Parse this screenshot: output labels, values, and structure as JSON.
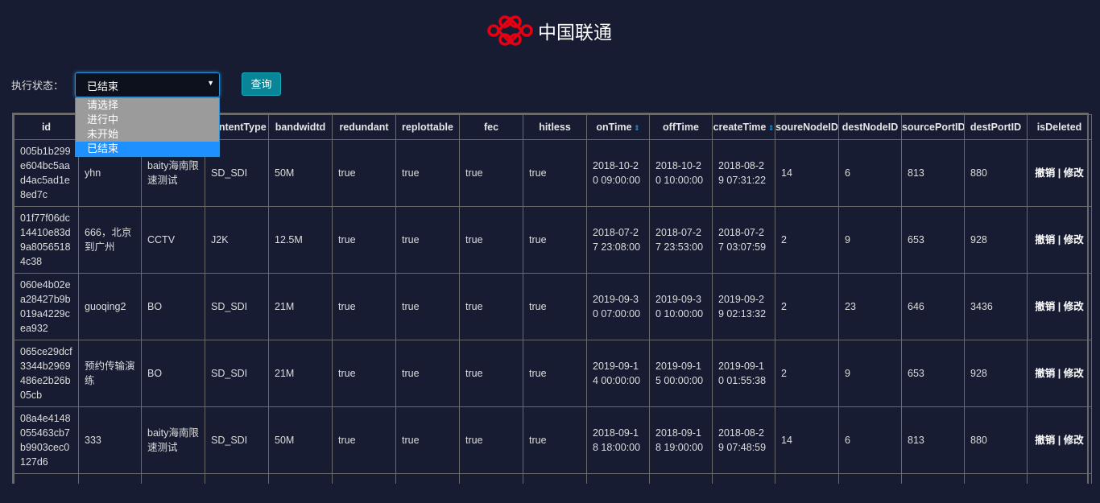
{
  "header": {
    "logo_text": "中国联通",
    "brand_color": "#e60012"
  },
  "filter": {
    "label": "执行状态：",
    "selected": "已结束",
    "options": [
      "请选择",
      "进行中",
      "未开始",
      "已结束"
    ],
    "query_label": "查询"
  },
  "table": {
    "columns": [
      "id",
      "",
      "",
      "contentType",
      "bandwidtd",
      "redundant",
      "replottable",
      "fec",
      "hitless",
      "onTime",
      "offTime",
      "createTime",
      "soureNodeID",
      "destNodeID",
      "sourcePortID",
      "destPortID",
      "isDeleted"
    ],
    "sortable": [
      "onTime",
      "createTime"
    ],
    "action_revoke": "撤销",
    "action_sep": "|",
    "action_edit": "修改",
    "rows": [
      [
        "005b1b299e604bc5aad4ac5ad1e8ed7c",
        "yhn",
        "baity海南限速测试",
        "SD_SDI",
        "50M",
        "true",
        "true",
        "true",
        "true",
        "2018-10-20 09:00:00",
        "2018-10-20 10:00:00",
        "2018-08-29 07:31:22",
        "14",
        "6",
        "813",
        "880"
      ],
      [
        "01f77f06dc14410e83d9a80565184c38",
        "666，北京到广州",
        "CCTV",
        "J2K",
        "12.5M",
        "true",
        "true",
        "true",
        "true",
        "2018-07-27 23:08:00",
        "2018-07-27 23:53:00",
        "2018-07-27 03:07:59",
        "2",
        "9",
        "653",
        "928"
      ],
      [
        "060e4b02ea28427b9b019a4229cea932",
        "guoqing2",
        "BO",
        "SD_SDI",
        "21M",
        "true",
        "true",
        "true",
        "true",
        "2019-09-30 07:00:00",
        "2019-09-30 10:00:00",
        "2019-09-29 02:13:32",
        "2",
        "23",
        "646",
        "3436"
      ],
      [
        "065ce29dcf3344b2969486e2b26b05cb",
        "预约传输演练",
        "BO",
        "SD_SDI",
        "21M",
        "true",
        "true",
        "true",
        "true",
        "2019-09-14 00:00:00",
        "2019-09-15 00:00:00",
        "2019-09-10 01:55:38",
        "2",
        "9",
        "653",
        "928"
      ],
      [
        "08a4e4148055463cb7b9903cec0127d6",
        "333",
        "baity海南限速测试",
        "SD_SDI",
        "50M",
        "true",
        "true",
        "true",
        "true",
        "2018-09-18 18:00:00",
        "2018-09-18 19:00:00",
        "2018-08-29 07:48:59",
        "14",
        "6",
        "813",
        "880"
      ]
    ]
  }
}
